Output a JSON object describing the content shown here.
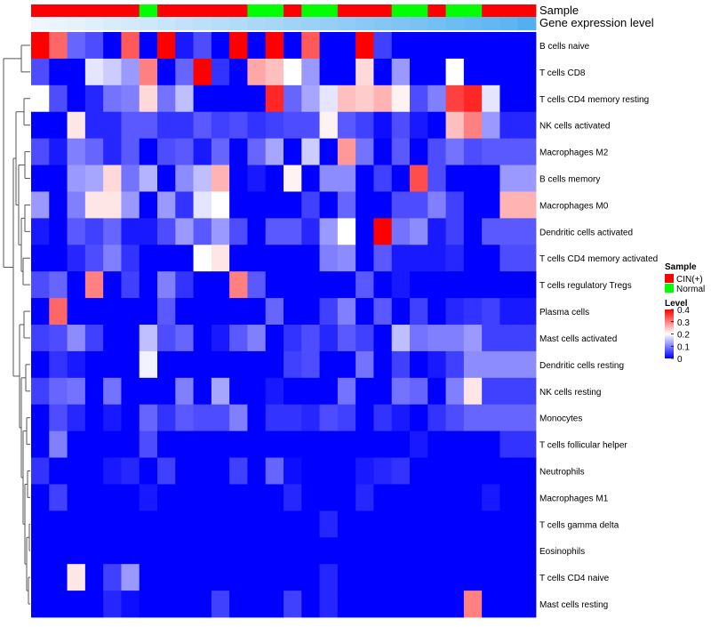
{
  "chart_data": {
    "type": "heatmap",
    "title": "",
    "annotation_tracks": [
      "Sample",
      "Gene expression level"
    ],
    "sample_groups": [
      "C",
      "C",
      "C",
      "C",
      "C",
      "C",
      "N",
      "C",
      "C",
      "C",
      "C",
      "C",
      "N",
      "N",
      "C",
      "N",
      "N",
      "C",
      "C",
      "C",
      "N",
      "N",
      "C",
      "N",
      "N",
      "C",
      "C",
      "C"
    ],
    "expression_track": [
      0.02,
      0.03,
      0.04,
      0.05,
      0.06,
      0.07,
      0.08,
      0.09,
      0.1,
      0.11,
      0.12,
      0.13,
      0.14,
      0.15,
      0.16,
      0.17,
      0.18,
      0.19,
      0.2,
      0.21,
      0.22,
      0.23,
      0.24,
      0.25,
      0.26,
      0.27,
      0.28,
      0.3
    ],
    "rows": [
      "B cells naive",
      "T cells CD8",
      "T cells CD4 memory resting",
      "NK cells activated",
      "Macrophages M2",
      "B cells memory",
      "Macrophages M0",
      "Dendritic cells activated",
      "T cells CD4 memory activated",
      "T cells regulatory  Tregs",
      "Plasma cells",
      "Mast cells activated",
      "Dendritic cells resting",
      "NK cells resting",
      "Monocytes",
      "T cells follicular helper",
      "Neutrophils",
      "Macrophages M1",
      "T cells gamma delta",
      "Eosinophils",
      "T cells CD4 naive",
      "Mast cells resting"
    ],
    "values": [
      [
        0.4,
        0.32,
        0.08,
        0.06,
        0.0,
        0.33,
        0.0,
        0.4,
        0.02,
        0.06,
        0.0,
        0.4,
        0.0,
        0.4,
        0.0,
        0.33,
        0.0,
        0.0,
        0.4,
        0.05,
        0.0,
        0.0,
        0.0,
        0.0,
        0.0,
        0.0,
        0.0,
        0.0
      ],
      [
        0.06,
        0.0,
        0.0,
        0.18,
        0.16,
        0.12,
        0.3,
        0.0,
        0.08,
        0.4,
        0.04,
        0.0,
        0.27,
        0.25,
        0.2,
        0.12,
        0.0,
        0.0,
        0.23,
        0.0,
        0.12,
        0.0,
        0.0,
        0.2,
        0.0,
        0.0,
        0.0,
        0.0
      ],
      [
        0.2,
        0.06,
        0.0,
        0.03,
        0.09,
        0.1,
        0.23,
        0.09,
        0.15,
        0.0,
        0.0,
        0.0,
        0.0,
        0.37,
        0.08,
        0.13,
        0.18,
        0.25,
        0.24,
        0.26,
        0.21,
        0.06,
        0.1,
        0.35,
        0.37,
        0.18,
        0.0,
        0.0
      ],
      [
        0.0,
        0.0,
        0.22,
        0.03,
        0.03,
        0.07,
        0.07,
        0.04,
        0.04,
        0.07,
        0.05,
        0.06,
        0.04,
        0.05,
        0.06,
        0.06,
        0.21,
        0.07,
        0.05,
        0.01,
        0.06,
        0.02,
        0.0,
        0.25,
        0.3,
        0.12,
        0.03,
        0.03
      ],
      [
        0.06,
        0.02,
        0.1,
        0.08,
        0.03,
        0.07,
        0.0,
        0.06,
        0.07,
        0.02,
        0.08,
        0.0,
        0.08,
        0.13,
        0.0,
        0.16,
        0.0,
        0.28,
        0.09,
        0.0,
        0.07,
        0.0,
        0.06,
        0.09,
        0.06,
        0.07,
        0.07,
        0.07
      ],
      [
        0.0,
        0.0,
        0.12,
        0.13,
        0.23,
        0.09,
        0.14,
        0.0,
        0.11,
        0.15,
        0.26,
        0.0,
        0.02,
        0.0,
        0.21,
        0.0,
        0.11,
        0.11,
        0.0,
        0.05,
        0.0,
        0.34,
        0.06,
        0.0,
        0.0,
        0.0,
        0.12,
        0.12
      ],
      [
        0.12,
        0.0,
        0.1,
        0.22,
        0.22,
        0.12,
        0.0,
        0.12,
        0.04,
        0.18,
        0.2,
        0.0,
        0.0,
        0.0,
        0.0,
        0.05,
        0.0,
        0.08,
        0.0,
        0.0,
        0.06,
        0.06,
        0.1,
        0.05,
        0.0,
        0.0,
        0.26,
        0.26
      ],
      [
        0.02,
        0.0,
        0.07,
        0.05,
        0.08,
        0.02,
        0.02,
        0.06,
        0.12,
        0.07,
        0.12,
        0.06,
        0.0,
        0.07,
        0.07,
        0.03,
        0.12,
        0.2,
        0.0,
        0.4,
        0.09,
        0.11,
        0.02,
        0.05,
        0.0,
        0.07,
        0.07,
        0.07
      ],
      [
        0.0,
        0.0,
        0.03,
        0.06,
        0.1,
        0.04,
        0.0,
        0.0,
        0.0,
        0.2,
        0.22,
        0.0,
        0.0,
        0.0,
        0.0,
        0.0,
        0.1,
        0.11,
        0.0,
        0.07,
        0.02,
        0.02,
        0.02,
        0.03,
        0.0,
        0.0,
        0.06,
        0.06
      ],
      [
        0.06,
        0.08,
        0.0,
        0.3,
        0.0,
        0.05,
        0.0,
        0.1,
        0.04,
        0.0,
        0.0,
        0.3,
        0.07,
        0.0,
        0.0,
        0.0,
        0.0,
        0.0,
        0.07,
        0.0,
        0.02,
        0.0,
        0.0,
        0.0,
        0.0,
        0.0,
        0.0,
        0.0
      ],
      [
        0.0,
        0.32,
        0.0,
        0.0,
        0.0,
        0.0,
        0.0,
        0.07,
        0.0,
        0.0,
        0.0,
        0.0,
        0.0,
        0.08,
        0.0,
        0.0,
        0.05,
        0.1,
        0.0,
        0.07,
        0.0,
        0.05,
        0.0,
        0.03,
        0.04,
        0.05,
        0.02,
        0.02
      ],
      [
        0.05,
        0.06,
        0.11,
        0.05,
        0.0,
        0.0,
        0.15,
        0.06,
        0.08,
        0.0,
        0.02,
        0.07,
        0.1,
        0.0,
        0.04,
        0.06,
        0.03,
        0.07,
        0.05,
        0.0,
        0.15,
        0.09,
        0.1,
        0.1,
        0.12,
        0.05,
        0.05,
        0.05
      ],
      [
        0.0,
        0.04,
        0.02,
        0.0,
        0.0,
        0.0,
        0.19,
        0.0,
        0.0,
        0.0,
        0.0,
        0.0,
        0.0,
        0.0,
        0.05,
        0.06,
        0.0,
        0.0,
        0.09,
        0.0,
        0.05,
        0.0,
        0.02,
        0.05,
        0.11,
        0.11,
        0.11,
        0.11
      ],
      [
        0.05,
        0.08,
        0.09,
        0.0,
        0.09,
        0.0,
        0.0,
        0.0,
        0.1,
        0.0,
        0.13,
        0.0,
        0.0,
        0.02,
        0.0,
        0.0,
        0.0,
        0.09,
        0.0,
        0.0,
        0.09,
        0.08,
        0.0,
        0.1,
        0.22,
        0.05,
        0.05,
        0.05
      ],
      [
        0.0,
        0.06,
        0.03,
        0.0,
        0.02,
        0.0,
        0.08,
        0.04,
        0.07,
        0.06,
        0.06,
        0.1,
        0.0,
        0.04,
        0.04,
        0.03,
        0.06,
        0.05,
        0.0,
        0.04,
        0.02,
        0.0,
        0.04,
        0.06,
        0.08,
        0.08,
        0.08,
        0.08
      ],
      [
        0.0,
        0.1,
        0.0,
        0.0,
        0.0,
        0.0,
        0.06,
        0.0,
        0.0,
        0.0,
        0.0,
        0.0,
        0.0,
        0.0,
        0.0,
        0.0,
        0.0,
        0.0,
        0.0,
        0.0,
        0.0,
        0.02,
        0.0,
        0.0,
        0.0,
        0.0,
        0.04,
        0.04
      ],
      [
        0.04,
        0.0,
        0.0,
        0.0,
        0.02,
        0.03,
        0.0,
        0.05,
        0.0,
        0.0,
        0.0,
        0.05,
        0.0,
        0.08,
        0.01,
        0.0,
        0.0,
        0.0,
        0.02,
        0.03,
        0.04,
        0.0,
        0.0,
        0.0,
        0.0,
        0.0,
        0.0,
        0.0
      ],
      [
        0.0,
        0.05,
        0.0,
        0.0,
        0.0,
        0.0,
        0.02,
        0.0,
        0.0,
        0.0,
        0.0,
        0.0,
        0.0,
        0.0,
        0.03,
        0.0,
        0.0,
        0.0,
        0.03,
        0.0,
        0.0,
        0.0,
        0.0,
        0.0,
        0.0,
        0.02,
        0.0,
        0.0
      ],
      [
        0.0,
        0.0,
        0.0,
        0.0,
        0.0,
        0.0,
        0.0,
        0.0,
        0.0,
        0.0,
        0.0,
        0.0,
        0.0,
        0.0,
        0.0,
        0.0,
        0.03,
        0.0,
        0.0,
        0.0,
        0.0,
        0.0,
        0.0,
        0.0,
        0.0,
        0.0,
        0.0,
        0.0
      ],
      [
        0.0,
        0.0,
        0.0,
        0.0,
        0.0,
        0.0,
        0.0,
        0.0,
        0.0,
        0.0,
        0.0,
        0.0,
        0.0,
        0.0,
        0.0,
        0.0,
        0.0,
        0.0,
        0.0,
        0.0,
        0.0,
        0.0,
        0.0,
        0.0,
        0.0,
        0.0,
        0.0,
        0.0
      ],
      [
        0.0,
        0.0,
        0.22,
        0.0,
        0.05,
        0.12,
        0.0,
        0.0,
        0.0,
        0.0,
        0.0,
        0.0,
        0.0,
        0.0,
        0.0,
        0.0,
        0.03,
        0.0,
        0.0,
        0.0,
        0.0,
        0.0,
        0.0,
        0.0,
        0.0,
        0.0,
        0.0,
        0.0
      ],
      [
        0.0,
        0.0,
        0.0,
        0.0,
        0.03,
        0.01,
        0.0,
        0.0,
        0.0,
        0.0,
        0.05,
        0.0,
        0.0,
        0.0,
        0.05,
        0.0,
        0.03,
        0.0,
        0.0,
        0.0,
        0.0,
        0.0,
        0.0,
        0.0,
        0.3,
        0.0,
        0.0,
        0.0
      ]
    ],
    "colorscale": {
      "low": "#0000ff",
      "mid": "#ffffff",
      "high": "#ff0000",
      "min": 0,
      "mid_value": 0.2,
      "max": 0.4
    },
    "legend_sample": {
      "title": "Sample",
      "items": [
        {
          "key": "C",
          "label": "CIN(+)",
          "color": "#ff0000"
        },
        {
          "key": "N",
          "label": "Normal",
          "color": "#00ff00"
        }
      ]
    },
    "legend_level": {
      "title": "Level",
      "ticks": [
        "0.4",
        "0.3",
        "0.2",
        "0.1",
        "0"
      ]
    }
  }
}
